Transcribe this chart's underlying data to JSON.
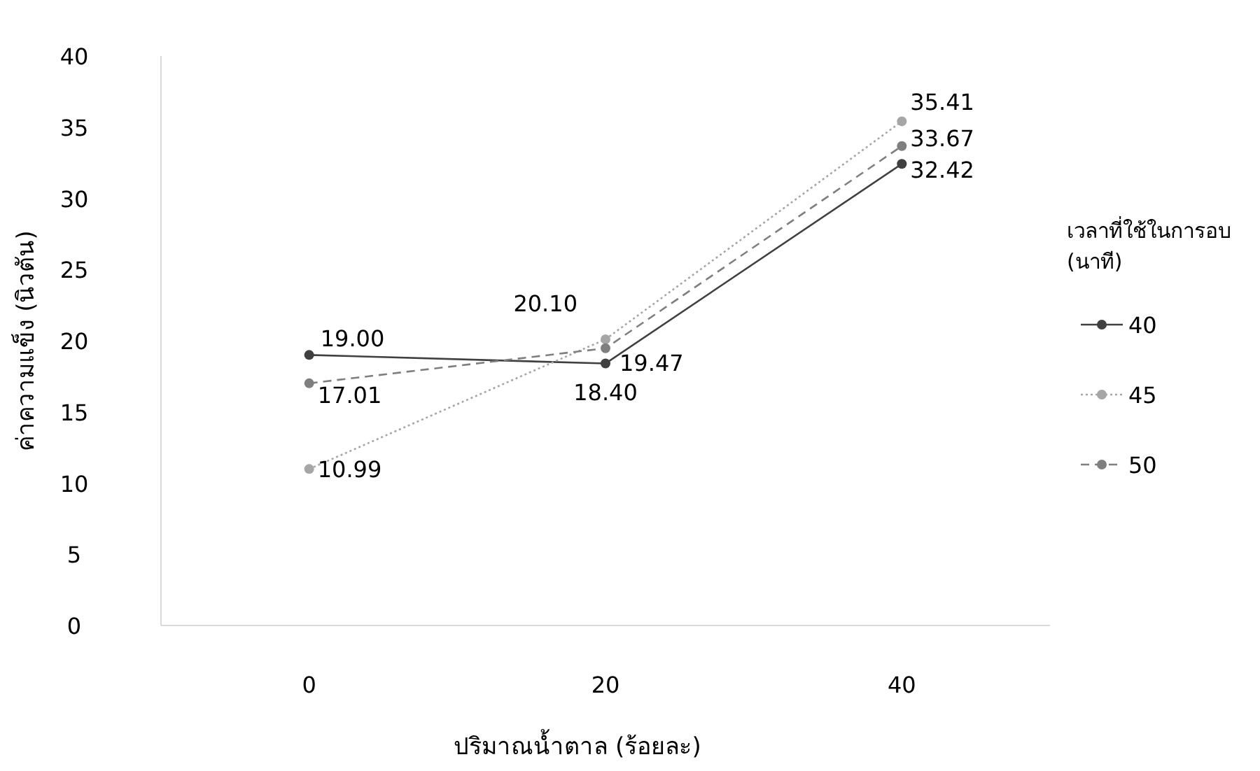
{
  "chart_data": {
    "type": "line",
    "xlabel": "ปริมาณน้ำตาล (ร้อยละ)",
    "ylabel": "ค่าความแข็ง (นิวตัน)",
    "legend_title": "เวลาที่ใช้ในการอบ (นาที)",
    "categories": [
      "0",
      "20",
      "40"
    ],
    "series": [
      {
        "name": "40",
        "color": "#404040",
        "line_style": "solid",
        "values": [
          19.0,
          18.4,
          32.42
        ],
        "value_labels": [
          "19.00",
          "18.40",
          "32.42"
        ]
      },
      {
        "name": "45",
        "color": "#a6a6a6",
        "line_style": "dotted",
        "values": [
          10.99,
          20.1,
          35.41
        ],
        "value_labels": [
          "10.99",
          "20.10",
          "35.41"
        ]
      },
      {
        "name": "50",
        "color": "#7f7f7f",
        "line_style": "dashed",
        "values": [
          17.01,
          19.47,
          33.67
        ],
        "value_labels": [
          "17.01",
          "19.47",
          "33.67"
        ]
      }
    ],
    "ylim": [
      0,
      40
    ],
    "yticks": [
      0,
      5,
      10,
      15,
      20,
      25,
      30,
      35,
      40
    ],
    "marker": "circle",
    "legend": "right",
    "grid": false
  }
}
